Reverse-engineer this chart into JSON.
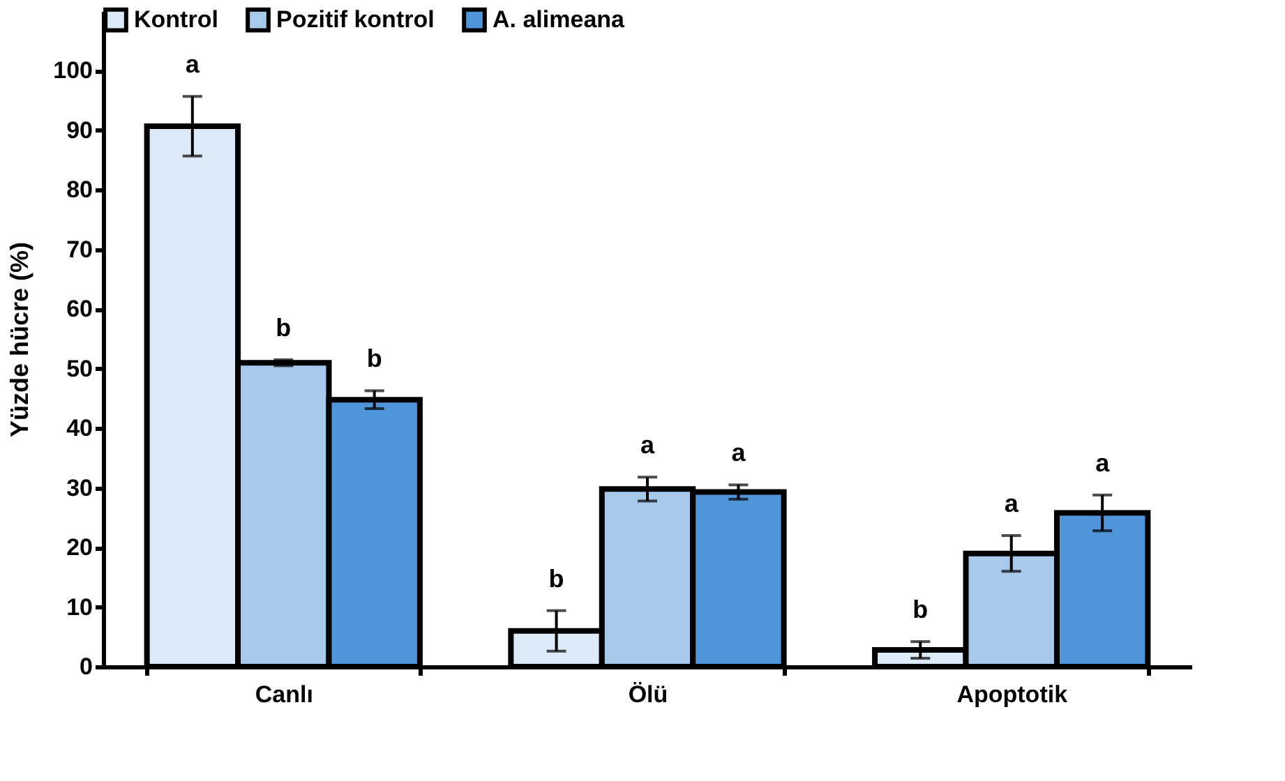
{
  "chart_data": {
    "type": "bar",
    "ylabel": "Yüzde hücre (%)",
    "categories": [
      "Canlı",
      "Ölü",
      "Apoptotik"
    ],
    "series": [
      {
        "name": "Kontrol",
        "color": "#dce9f7",
        "values": [
          90.7,
          6.0,
          2.8
        ],
        "errors": [
          5.0,
          3.4,
          1.4
        ]
      },
      {
        "name": "Pozitif kontrol",
        "color": "#a7caec",
        "values": [
          51.0,
          29.8,
          19.0
        ],
        "errors": [
          0.5,
          2.0,
          3.0
        ]
      },
      {
        "name": "A. alimeana",
        "color": "#5094d9",
        "values": [
          44.8,
          29.3,
          25.8
        ],
        "errors": [
          1.5,
          1.2,
          3.0
        ]
      }
    ],
    "annotations": [
      "a",
      "b",
      "b",
      "b",
      "a",
      "a",
      "b",
      "a",
      "a"
    ],
    "ylim": [
      0,
      110
    ],
    "yticks": [
      0,
      10,
      20,
      30,
      40,
      50,
      60,
      70,
      80,
      90,
      100
    ],
    "grid": false,
    "legend": "top"
  }
}
